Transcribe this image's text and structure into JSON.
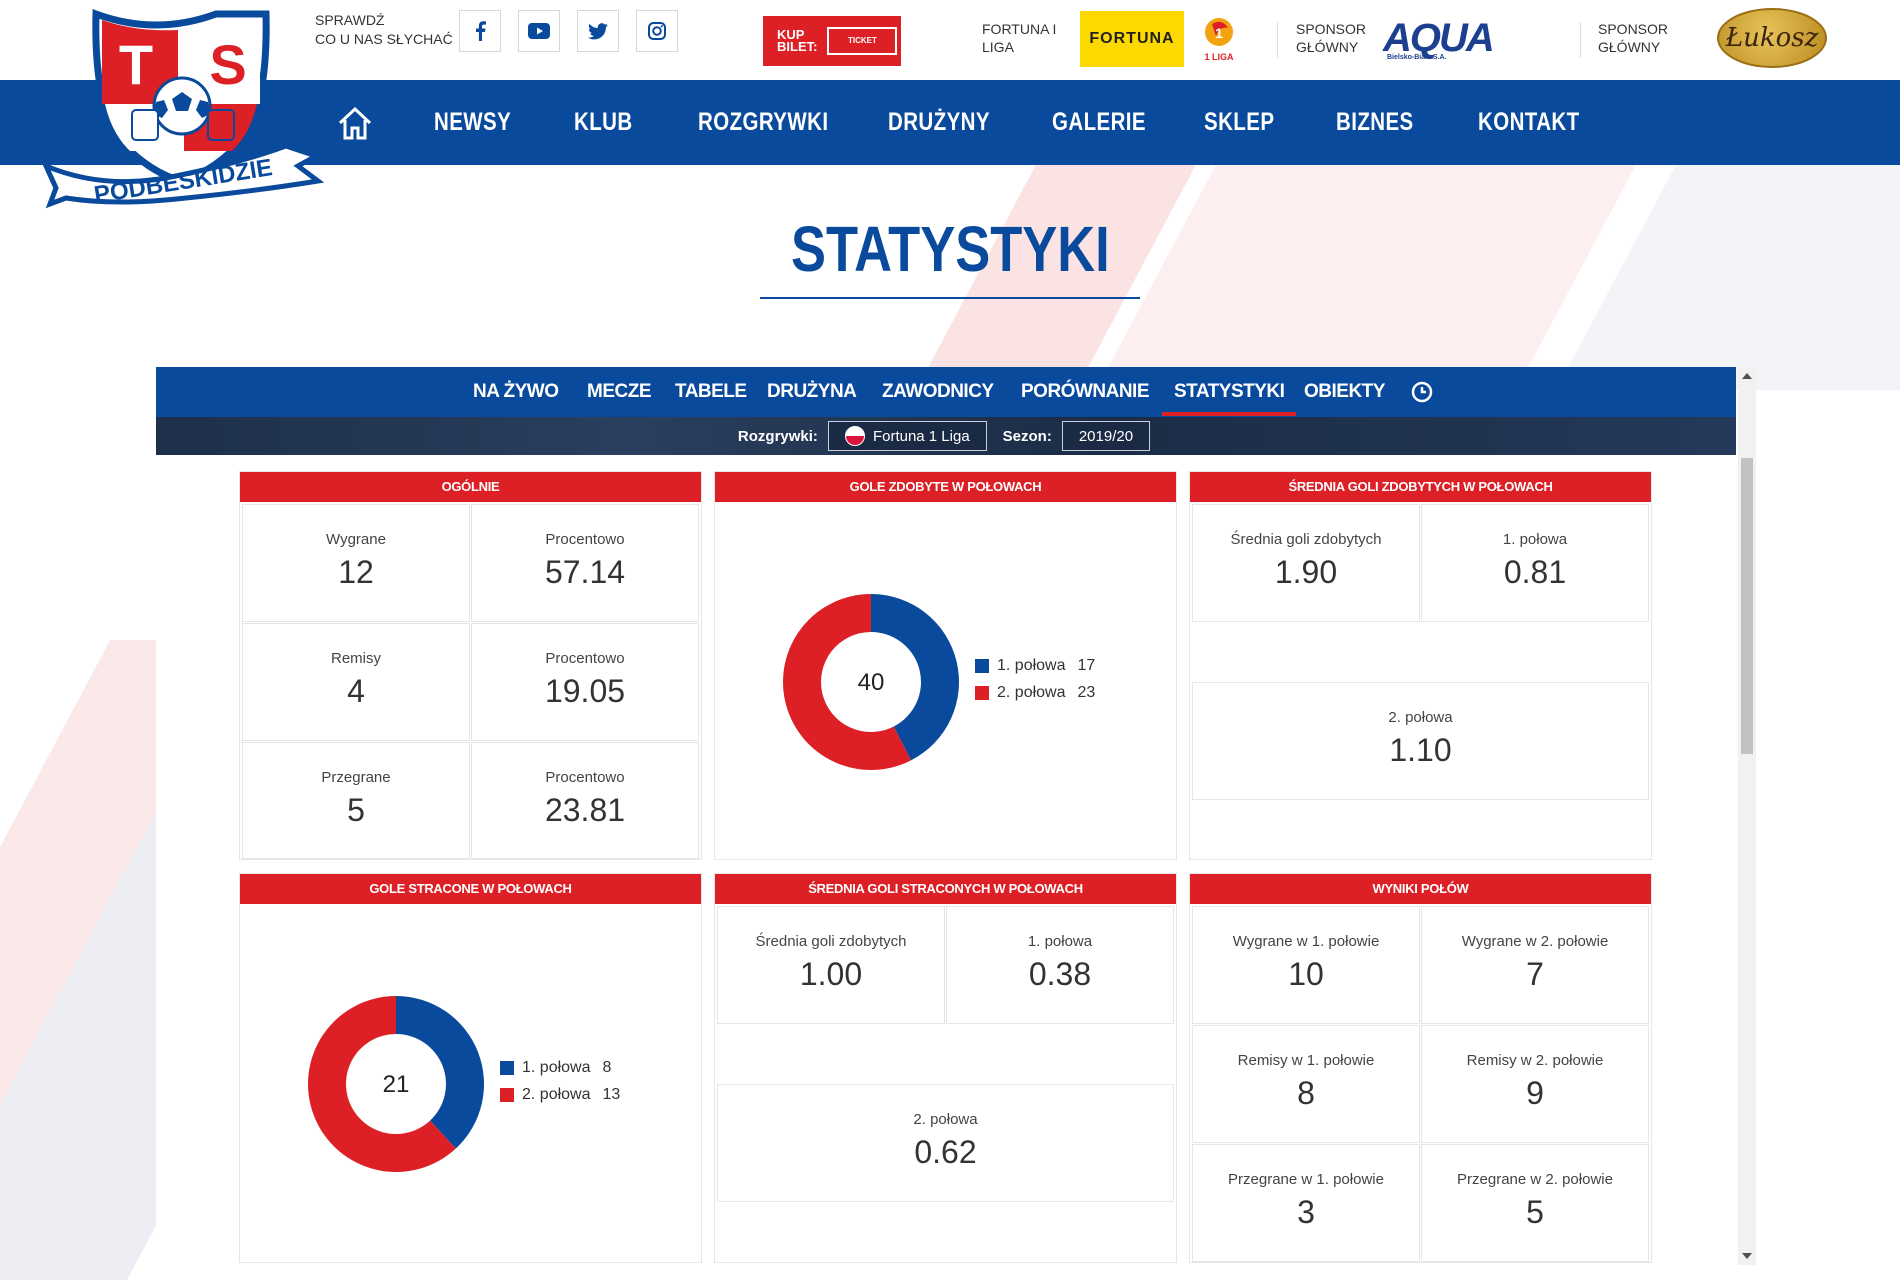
{
  "social": {
    "label_line1": "SPRAWDŹ",
    "label_line2": "CO U NAS SŁYCHAĆ",
    "icons": [
      "facebook-icon",
      "youtube-icon",
      "twitter-icon",
      "instagram-icon"
    ]
  },
  "club_logo": {
    "letters_left": "T",
    "letters_right": "S",
    "ribbon": "PODBESKIDZIE"
  },
  "ticket": {
    "line1": "KUP",
    "line2": "BILET:",
    "tag": "TICKET"
  },
  "sponsors": [
    {
      "label_line1": "FORTUNA I",
      "label_line2": "LIGA",
      "logo": "FORTUNA",
      "extra_logo": "1 LIGA"
    },
    {
      "label_line1": "SPONSOR",
      "label_line2": "GŁÓWNY",
      "logo": "AQUA",
      "logo_sub": "Bielsko-Biała   S.A."
    },
    {
      "label_line1": "SPONSOR",
      "label_line2": "GŁÓWNY",
      "logo": "Łukosz"
    }
  ],
  "nav": [
    "NEWSY",
    "KLUB",
    "ROZGRYWKI",
    "DRUŻYNY",
    "GALERIE",
    "SKLEP",
    "BIZNES",
    "KONTAKT"
  ],
  "page_title": "STATYSTYKI",
  "subnav": {
    "tabs": [
      "NA ŻYWO",
      "MECZE",
      "TABELE",
      "DRUŻYNA",
      "ZAWODNICY",
      "PORÓWNANIE",
      "STATYSTYKI",
      "OBIEKTY"
    ],
    "active": "STATYSTYKI"
  },
  "filters": {
    "competition_label": "Rozgrywki:",
    "competition_value": "Fortuna 1 Liga",
    "season_label": "Sezon:",
    "season_value": "2019/20"
  },
  "colors": {
    "primary_blue": "#0a4a9c",
    "accent_red": "#dd1f26"
  },
  "panels": {
    "overall": {
      "title": "OGÓLNIE",
      "cells": [
        {
          "label": "Wygrane",
          "value": "12"
        },
        {
          "label": "Procentowo",
          "value": "57.14"
        },
        {
          "label": "Remisy",
          "value": "4"
        },
        {
          "label": "Procentowo",
          "value": "19.05"
        },
        {
          "label": "Przegrane",
          "value": "5"
        },
        {
          "label": "Procentowo",
          "value": "23.81"
        }
      ]
    },
    "goals_scored": {
      "title": "GOLE ZDOBYTE W POŁOWACH",
      "total": "40",
      "legend": [
        {
          "label": "1. połowa",
          "value": "17"
        },
        {
          "label": "2. połowa",
          "value": "23"
        }
      ]
    },
    "avg_scored": {
      "title": "ŚREDNIA GOLI ZDOBYTYCH W POŁOWACH",
      "cells": [
        {
          "label": "Średnia goli zdobytych",
          "value": "1.90"
        },
        {
          "label": "1. połowa",
          "value": "0.81"
        },
        {
          "label": "2. połowa",
          "value": "1.10"
        }
      ]
    },
    "goals_conceded": {
      "title": "GOLE STRACONE W POŁOWACH",
      "total": "21",
      "legend": [
        {
          "label": "1. połowa",
          "value": "8"
        },
        {
          "label": "2. połowa",
          "value": "13"
        }
      ]
    },
    "avg_conceded": {
      "title": "ŚREDNIA GOLI STRACONYCH W POŁOWACH",
      "cells": [
        {
          "label": "Średnia goli zdobytych",
          "value": "1.00"
        },
        {
          "label": "1. połowa",
          "value": "0.38"
        },
        {
          "label": "2. połowa",
          "value": "0.62"
        }
      ]
    },
    "half_results": {
      "title": "WYNIKI POŁÓW",
      "cells": [
        {
          "label": "Wygrane w 1. połowie",
          "value": "10"
        },
        {
          "label": "Wygrane w 2. połowie",
          "value": "7"
        },
        {
          "label": "Remisy w 1. połowie",
          "value": "8"
        },
        {
          "label": "Remisy w 2. połowie",
          "value": "9"
        },
        {
          "label": "Przegrane w 1. połowie",
          "value": "3"
        },
        {
          "label": "Przegrane w 2. połowie",
          "value": "5"
        }
      ]
    }
  },
  "chart_data": [
    {
      "type": "pie",
      "categories": [
        "1. połowa",
        "2. połowa"
      ],
      "values": [
        17,
        23
      ],
      "center_label": "40",
      "colors": [
        "#0a4a9c",
        "#dd1f26"
      ]
    },
    {
      "type": "pie",
      "categories": [
        "1. połowa",
        "2. połowa"
      ],
      "values": [
        8,
        13
      ],
      "center_label": "21",
      "colors": [
        "#0a4a9c",
        "#dd1f26"
      ]
    }
  ]
}
